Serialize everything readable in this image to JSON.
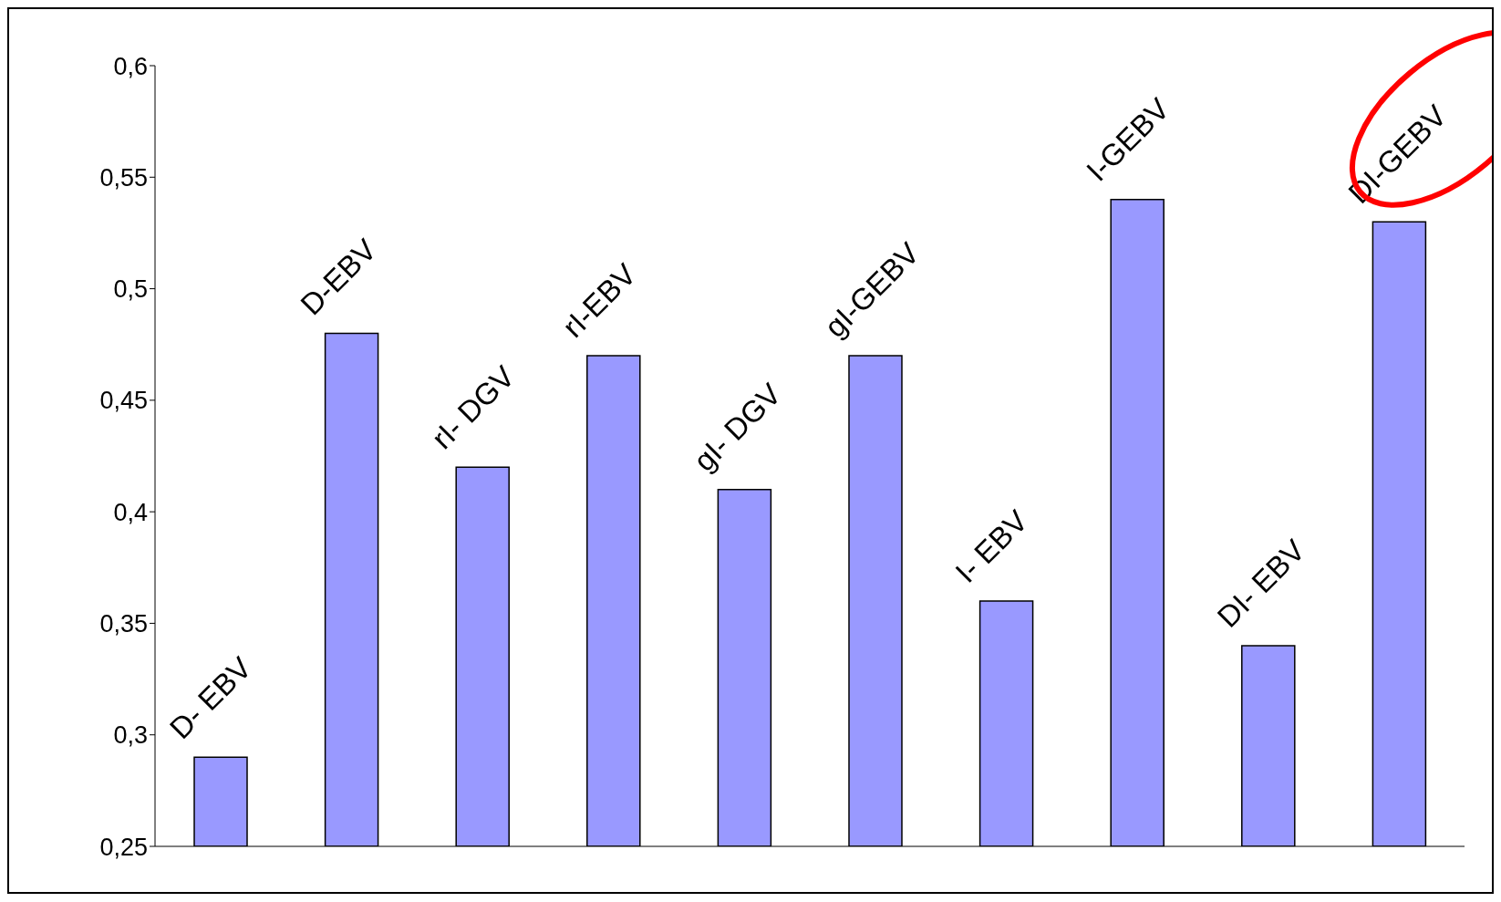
{
  "chart_data": {
    "type": "bar",
    "categories": [
      "D- EBV",
      "D-EBV",
      "rI- DGV",
      "rI-EBV",
      "gI- DGV",
      "gI-GEBV",
      "I- EBV",
      "I-GEBV",
      "DI- EBV",
      "DI-GEBV"
    ],
    "values": [
      0.29,
      0.48,
      0.42,
      0.47,
      0.41,
      0.47,
      0.36,
      0.54,
      0.34,
      0.53
    ],
    "color": "#9999ff",
    "ylim": [
      0.25,
      0.6
    ],
    "yticks": [
      {
        "value": 0.25,
        "label": "0,25"
      },
      {
        "value": 0.3,
        "label": "0,3"
      },
      {
        "value": 0.35,
        "label": "0,35"
      },
      {
        "value": 0.4,
        "label": "0,4"
      },
      {
        "value": 0.45,
        "label": "0,45"
      },
      {
        "value": 0.5,
        "label": "0,5"
      },
      {
        "value": 0.55,
        "label": "0,55"
      },
      {
        "value": 0.6,
        "label": "0,6"
      }
    ],
    "grid": false
  }
}
